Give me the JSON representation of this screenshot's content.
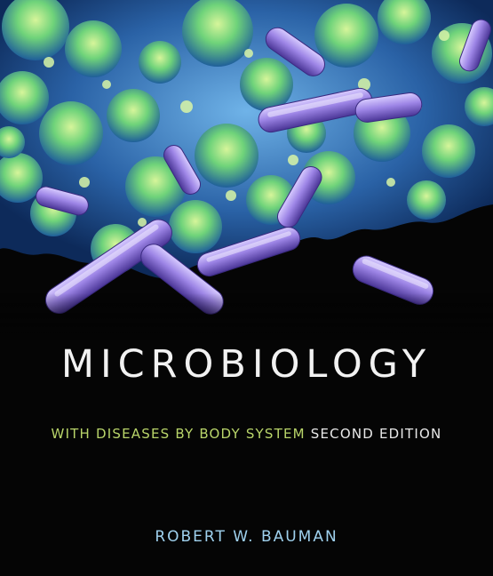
{
  "cover": {
    "title": "MICROBIOLOGY",
    "subtitle_highlight": "WITH DISEASES BY BODY SYSTEM",
    "subtitle_edition": "SECOND EDITION",
    "author": "ROBERT W. BAUMAN"
  },
  "colors": {
    "background": "#050505",
    "title": "#f2f2f2",
    "subtitle_highlight": "#b9d56a",
    "subtitle_edition": "#e8e8e8",
    "author": "#9fd1ee",
    "bacteria": "#9a7fe0",
    "tissue_green": "#8fe07a",
    "tissue_blue": "#2f6fb0"
  },
  "image": {
    "subject": "micrograph-bacteria-icon"
  }
}
